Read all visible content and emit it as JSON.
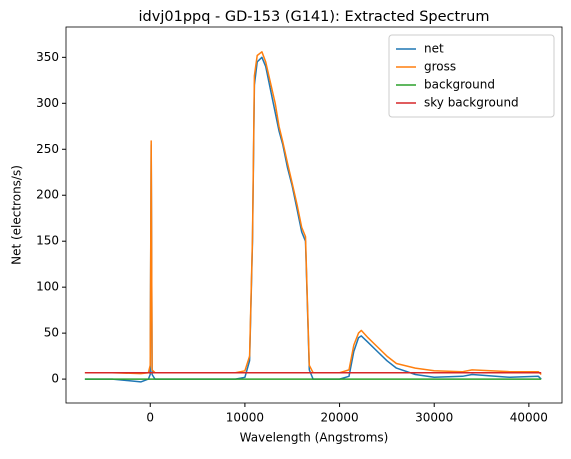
{
  "chart_data": {
    "type": "line",
    "title": "idvj01ppq - GD-153 (G141): Extracted Spectrum",
    "xlabel": "Wavelength (Angstroms)",
    "ylabel": "Net (electrons/s)",
    "x": [
      -6900,
      -4000,
      -1000,
      -200,
      0,
      100,
      200,
      500,
      3000,
      6000,
      9000,
      10000,
      10500,
      10800,
      11000,
      11300,
      11800,
      12200,
      12800,
      13200,
      13600,
      14000,
      14500,
      15000,
      15500,
      16000,
      16400,
      16600,
      16800,
      17200,
      20000,
      21000,
      21500,
      22000,
      22300,
      23000,
      24000,
      25000,
      26000,
      28000,
      30000,
      33000,
      34000,
      38000,
      41000,
      41300
    ],
    "series": [
      {
        "name": "net",
        "color": "#1f77b4",
        "values": [
          0,
          0,
          -3,
          0,
          5,
          255,
          5,
          0,
          0,
          0,
          0,
          2,
          20,
          150,
          320,
          345,
          350,
          340,
          310,
          290,
          270,
          255,
          230,
          210,
          185,
          160,
          150,
          80,
          10,
          0,
          0,
          3,
          30,
          45,
          47,
          40,
          30,
          20,
          12,
          5,
          2,
          3,
          5,
          2,
          3,
          0
        ]
      },
      {
        "name": "gross",
        "color": "#ff7f0e",
        "values": [
          7,
          7,
          6,
          7,
          15,
          259,
          10,
          7,
          7,
          7,
          7,
          9,
          25,
          155,
          330,
          352,
          356,
          345,
          318,
          300,
          275,
          258,
          235,
          213,
          190,
          165,
          155,
          85,
          15,
          7,
          7,
          10,
          37,
          50,
          53,
          45,
          35,
          25,
          17,
          12,
          9,
          8,
          10,
          8,
          8,
          5
        ]
      },
      {
        "name": "background",
        "color": "#2ca02c",
        "values": [
          0,
          0,
          0,
          0,
          0,
          0,
          0,
          0,
          0,
          0,
          0,
          0,
          0,
          0,
          0,
          0,
          0,
          0,
          0,
          0,
          0,
          0,
          0,
          0,
          0,
          0,
          0,
          0,
          0,
          0,
          0,
          0,
          0,
          0,
          0,
          0,
          0,
          0,
          0,
          0,
          0,
          0,
          0,
          0,
          0,
          0
        ]
      },
      {
        "name": "sky background",
        "color": "#d62728",
        "values": [
          7,
          7,
          7,
          7,
          7,
          7,
          7,
          7,
          7,
          7,
          7,
          7,
          7,
          7,
          7,
          7,
          7,
          7,
          7,
          7,
          7,
          7,
          7,
          7,
          7,
          7,
          7,
          7,
          7,
          7,
          7,
          7,
          7,
          7,
          7,
          7,
          7,
          7,
          7,
          7,
          7,
          7,
          7,
          7,
          7,
          7
        ]
      }
    ],
    "xlim": [
      -8900,
      43500
    ],
    "ylim": [
      -26,
      383
    ],
    "xticks": [
      0,
      10000,
      20000,
      30000,
      40000
    ],
    "yticks": [
      0,
      50,
      100,
      150,
      200,
      250,
      300,
      350
    ],
    "legend": "upper right"
  }
}
